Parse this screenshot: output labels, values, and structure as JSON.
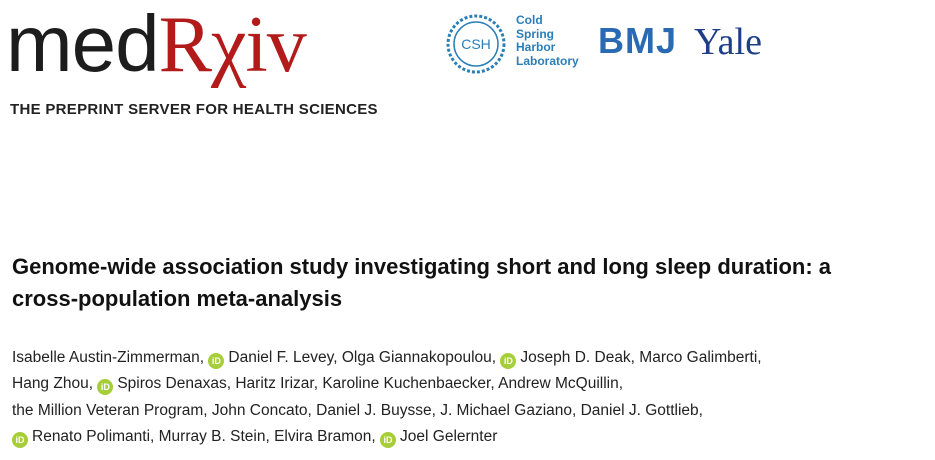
{
  "header": {
    "logo_med": "med",
    "logo_rx": "Rχiv",
    "tagline": "THE PREPRINT SERVER FOR HEALTH SCIENCES",
    "partners": {
      "csh_badge": "CSH",
      "csh_lines": [
        "Cold",
        "Spring",
        "Harbor",
        "Laboratory"
      ],
      "bmj": "BMJ",
      "yale": "Yale"
    }
  },
  "paper": {
    "title_line1": "Genome-wide association study investigating short and long sleep duration: a",
    "title_line2": "cross-population meta-analysis",
    "orcid_label": "iD",
    "authors": {
      "line1": [
        "Isabelle Austin-Zimmerman,",
        "Daniel F. Levey, Olga Giannakopoulou,",
        "Joseph D. Deak, Marco Galimberti,"
      ],
      "line2": [
        "Hang Zhou,",
        "Spiros Denaxas, Haritz Irizar, Karoline Kuchenbaecker, Andrew McQuillin,"
      ],
      "line3": [
        "the Million Veteran Program, John Concato, Daniel J. Buysse, J. Michael Gaziano, Daniel J. Gottlieb,"
      ],
      "line4": [
        "Renato Polimanti, Murray B. Stein, Elvira Bramon,",
        "Joel Gelernter"
      ]
    }
  },
  "colors": {
    "rx_red": "#b31b1b",
    "orcid_green": "#a6ce39",
    "csh_blue": "#2b7fb8",
    "bmj_blue": "#2a6ab3",
    "yale_blue": "#1e3f88"
  }
}
